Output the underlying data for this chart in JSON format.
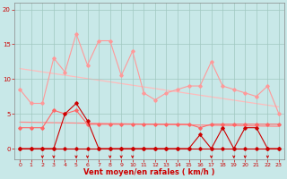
{
  "background_color": "#c8e8e8",
  "grid_color": "#a0c8c0",
  "xlim": [
    -0.5,
    23.5
  ],
  "ylim": [
    -1.5,
    21
  ],
  "xlabel": "Vent moyen/en rafales ( km/h )",
  "xlabel_color": "#cc0000",
  "xlabel_fontsize": 6.0,
  "xtick_fontsize": 4.5,
  "ytick_fontsize": 5.0,
  "tick_color": "#cc0000",
  "yticks": [
    0,
    5,
    10,
    15,
    20
  ],
  "xticks": [
    0,
    1,
    2,
    3,
    4,
    5,
    6,
    7,
    8,
    9,
    10,
    11,
    12,
    13,
    14,
    15,
    16,
    17,
    18,
    19,
    20,
    21,
    22,
    23
  ],
  "series": [
    {
      "x": [
        0,
        1,
        2,
        3,
        4,
        5,
        6,
        7,
        8,
        9,
        10,
        11,
        12,
        13,
        14,
        15,
        16,
        17,
        18,
        19,
        20,
        21,
        22,
        23
      ],
      "y": [
        8.5,
        6.5,
        6.5,
        13,
        11,
        16.5,
        12,
        15.5,
        15.5,
        10.5,
        14,
        8,
        7,
        8,
        8.5,
        9,
        9,
        12.5,
        9,
        8.5,
        8,
        7.5,
        9,
        5
      ],
      "color": "#ff9999",
      "lw": 0.8,
      "marker": "D",
      "ms": 1.8,
      "zorder": 2
    },
    {
      "x": [
        0,
        1,
        2,
        3,
        4,
        5,
        6,
        7,
        8,
        9,
        10,
        11,
        12,
        13,
        14,
        15,
        16,
        17,
        18,
        19,
        20,
        21,
        22,
        23
      ],
      "y": [
        3,
        3,
        3,
        5.5,
        5,
        5.5,
        3.5,
        3.5,
        3.5,
        3.5,
        3.5,
        3.5,
        3.5,
        3.5,
        3.5,
        3.5,
        3.0,
        3.5,
        3.5,
        3.5,
        3.5,
        3.5,
        3.5,
        3.5
      ],
      "color": "#ff6666",
      "lw": 0.8,
      "marker": "D",
      "ms": 1.8,
      "zorder": 3
    },
    {
      "x": [
        0,
        1,
        2,
        3,
        4,
        5,
        6,
        7,
        8,
        9,
        10,
        11,
        12,
        13,
        14,
        15,
        16,
        17,
        18,
        19,
        20,
        21,
        22,
        23
      ],
      "y": [
        0,
        0,
        0,
        0,
        5,
        6.5,
        4,
        0,
        0,
        0,
        0,
        0,
        0,
        0,
        0,
        0,
        2,
        0,
        3,
        0,
        3,
        3,
        0,
        0
      ],
      "color": "#cc0000",
      "lw": 0.8,
      "marker": "D",
      "ms": 1.8,
      "zorder": 4
    },
    {
      "x": [
        0,
        1,
        2,
        3,
        4,
        5,
        6,
        7,
        8,
        9,
        10,
        11,
        12,
        13,
        14,
        15,
        16,
        17,
        18,
        19,
        20,
        21,
        22,
        23
      ],
      "y": [
        0,
        0,
        0,
        0,
        0,
        0,
        0,
        0,
        0,
        0,
        0,
        0,
        0,
        0,
        0,
        0,
        0,
        0,
        0,
        0,
        0,
        0,
        0,
        0
      ],
      "color": "#cc0000",
      "lw": 0.8,
      "marker": "D",
      "ms": 1.8,
      "zorder": 2
    }
  ],
  "trend_lines": [
    {
      "x_start": 0,
      "x_end": 23,
      "y_start": 11.5,
      "y_end": 6.0,
      "color": "#ffbbbb",
      "lw": 0.9,
      "zorder": 1
    },
    {
      "x_start": 0,
      "x_end": 23,
      "y_start": 3.8,
      "y_end": 3.2,
      "color": "#ff8888",
      "lw": 0.9,
      "zorder": 1
    }
  ],
  "wind_arrows_x": [
    2,
    3,
    5,
    6,
    8,
    9,
    10,
    17,
    19,
    20,
    22
  ],
  "wind_arrow_color": "#cc0000"
}
